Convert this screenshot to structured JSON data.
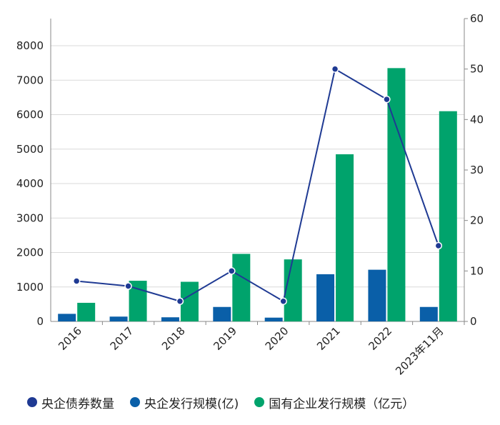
{
  "chart_data": {
    "type": "bar",
    "categories": [
      "2016",
      "2017",
      "2018",
      "2019",
      "2020",
      "2021",
      "2022",
      "2023年11月"
    ],
    "series": [
      {
        "name": "央企债券数量",
        "type": "line",
        "axis": "right",
        "color": "#1f3a93",
        "values": [
          8,
          7,
          4,
          10,
          4,
          50,
          44,
          15
        ]
      },
      {
        "name": "央企发行规模(亿)",
        "type": "bar",
        "axis": "left",
        "color": "#0a5fa8",
        "values": [
          220,
          140,
          120,
          420,
          110,
          1370,
          1500,
          420
        ]
      },
      {
        "name": "国有企业发行规模（亿元）",
        "type": "bar",
        "axis": "left",
        "color": "#00a36c",
        "values": [
          540,
          1180,
          1150,
          1960,
          1800,
          4850,
          7350,
          6100
        ]
      }
    ],
    "y_left": {
      "ylim": [
        0,
        8000
      ],
      "ticks": [
        0,
        1000,
        2000,
        3000,
        4000,
        5000,
        6000,
        7000,
        8000
      ]
    },
    "y_right": {
      "ylim": [
        0,
        60
      ],
      "ticks": [
        0,
        10,
        20,
        30,
        40,
        50,
        60
      ]
    },
    "grid": true,
    "legend_position": "bottom"
  }
}
